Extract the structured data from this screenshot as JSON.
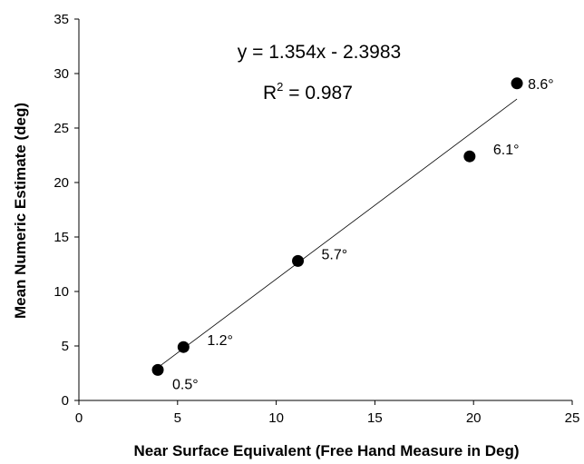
{
  "chart_data": {
    "type": "scatter",
    "title": "",
    "xlabel": "Near Surface Equivalent (Free Hand Measure in Deg)",
    "ylabel": "Mean Numeric Estimate (deg)",
    "xlim": [
      0,
      25
    ],
    "ylim": [
      0,
      35
    ],
    "x_ticks": [
      0,
      5,
      10,
      15,
      20,
      25
    ],
    "y_ticks": [
      0,
      5,
      10,
      15,
      20,
      25,
      30,
      35
    ],
    "grid": false,
    "legend": "none",
    "points": [
      {
        "x": 4.0,
        "y": 2.8,
        "label": "0.5°"
      },
      {
        "x": 5.3,
        "y": 4.9,
        "label": "1.2°"
      },
      {
        "x": 11.1,
        "y": 12.8,
        "label": "5.7°"
      },
      {
        "x": 19.8,
        "y": 22.4,
        "label": "6.1°"
      },
      {
        "x": 22.2,
        "y": 29.1,
        "label": "8.6°"
      }
    ],
    "trendline": {
      "slope": 1.354,
      "intercept": -2.3983,
      "x_range": [
        4.0,
        22.2
      ]
    },
    "annotations": {
      "equation": "y = 1.354x - 2.3983",
      "r2_prefix": "R",
      "r2_superscript": "2",
      "r2_value": " = 0.987"
    },
    "colors": {
      "points": "#000000",
      "trendline": "#000000",
      "axes": "#000000"
    }
  }
}
